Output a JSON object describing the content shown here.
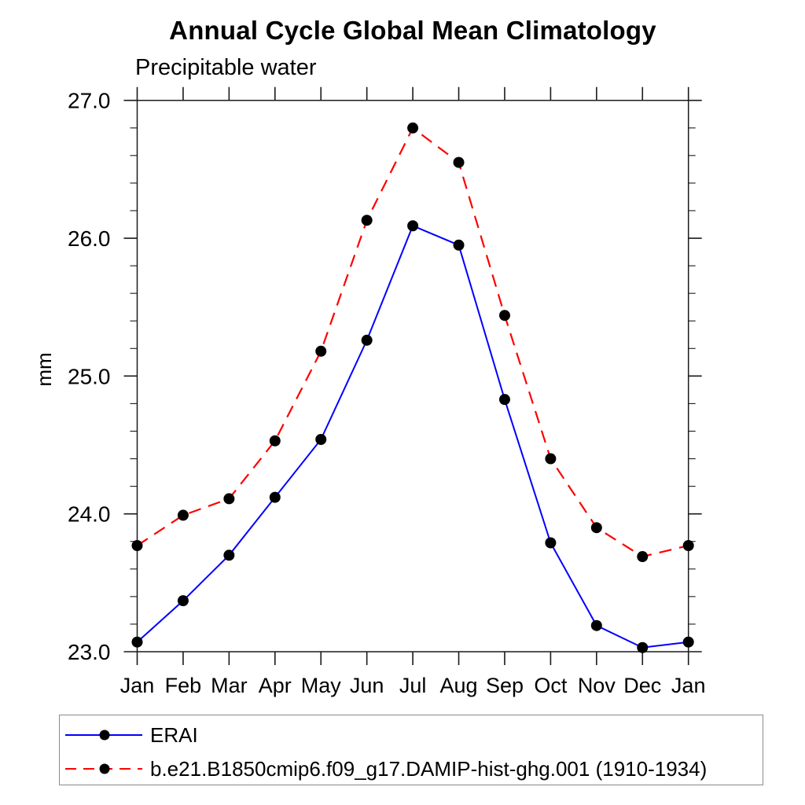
{
  "chart_data": {
    "type": "line",
    "title": "Annual Cycle Global Mean Climatology",
    "subtitle": "Precipitable water",
    "ylabel": "mm",
    "xlabel": "",
    "x_categories": [
      "Jan",
      "Feb",
      "Mar",
      "Apr",
      "May",
      "Jun",
      "Jul",
      "Aug",
      "Sep",
      "Oct",
      "Nov",
      "Dec",
      "Jan"
    ],
    "y_axis": {
      "min": 23.0,
      "max": 27.0,
      "major_step": 1.0,
      "minor_step": 0.2,
      "major_tick_labels": [
        "23.0",
        "24.0",
        "25.0",
        "26.0",
        "27.0"
      ]
    },
    "grid": "off",
    "legend_position": "bottom-left-box",
    "series": [
      {
        "name": "ERAI",
        "color": "#0000ff",
        "line_style": "solid",
        "marker": "filled-circle",
        "marker_color": "#000000",
        "values": [
          23.07,
          23.37,
          23.7,
          24.12,
          24.54,
          25.26,
          26.09,
          25.95,
          24.83,
          23.79,
          23.19,
          23.03,
          23.07
        ]
      },
      {
        "name": "b.e21.B1850cmip6.f09_g17.DAMIP-hist-ghg.001 (1910-1934)",
        "color": "#ff0000",
        "line_style": "dashed",
        "marker": "filled-circle",
        "marker_color": "#000000",
        "values": [
          23.77,
          23.99,
          24.11,
          24.53,
          25.18,
          26.13,
          26.8,
          26.55,
          25.44,
          24.4,
          23.9,
          23.69,
          23.77
        ]
      }
    ]
  }
}
